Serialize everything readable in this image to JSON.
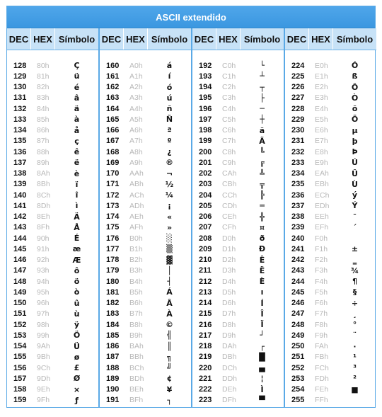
{
  "title": "ASCII extendido",
  "headers": {
    "dec": "DEC",
    "hex": "HEX",
    "sym": "Símbolo"
  },
  "columns": [
    [
      {
        "dec": "128",
        "hex": "80h",
        "sym": "Ç"
      },
      {
        "dec": "129",
        "hex": "81h",
        "sym": "ü"
      },
      {
        "dec": "130",
        "hex": "82h",
        "sym": "é"
      },
      {
        "dec": "131",
        "hex": "83h",
        "sym": "â"
      },
      {
        "dec": "132",
        "hex": "84h",
        "sym": "ä"
      },
      {
        "dec": "133",
        "hex": "85h",
        "sym": "à"
      },
      {
        "dec": "134",
        "hex": "86h",
        "sym": "å"
      },
      {
        "dec": "135",
        "hex": "87h",
        "sym": "ç"
      },
      {
        "dec": "136",
        "hex": "88h",
        "sym": "ê"
      },
      {
        "dec": "137",
        "hex": "89h",
        "sym": "ë"
      },
      {
        "dec": "138",
        "hex": "8Ah",
        "sym": "è"
      },
      {
        "dec": "139",
        "hex": "8Bh",
        "sym": "ï"
      },
      {
        "dec": "140",
        "hex": "8Ch",
        "sym": "î"
      },
      {
        "dec": "141",
        "hex": "8Dh",
        "sym": "ì"
      },
      {
        "dec": "142",
        "hex": "8Eh",
        "sym": "Ä"
      },
      {
        "dec": "143",
        "hex": "8Fh",
        "sym": "Å"
      },
      {
        "dec": "144",
        "hex": "90h",
        "sym": "É"
      },
      {
        "dec": "145",
        "hex": "91h",
        "sym": "æ"
      },
      {
        "dec": "146",
        "hex": "92h",
        "sym": "Æ"
      },
      {
        "dec": "147",
        "hex": "93h",
        "sym": "ô"
      },
      {
        "dec": "148",
        "hex": "94h",
        "sym": "ö"
      },
      {
        "dec": "149",
        "hex": "95h",
        "sym": "ò"
      },
      {
        "dec": "150",
        "hex": "96h",
        "sym": "û"
      },
      {
        "dec": "151",
        "hex": "97h",
        "sym": "ù"
      },
      {
        "dec": "152",
        "hex": "98h",
        "sym": "ÿ"
      },
      {
        "dec": "153",
        "hex": "99h",
        "sym": "Ö"
      },
      {
        "dec": "154",
        "hex": "9Ah",
        "sym": "Ü"
      },
      {
        "dec": "155",
        "hex": "9Bh",
        "sym": "ø"
      },
      {
        "dec": "156",
        "hex": "9Ch",
        "sym": "£"
      },
      {
        "dec": "157",
        "hex": "9Dh",
        "sym": "Ø"
      },
      {
        "dec": "158",
        "hex": "9Eh",
        "sym": "×"
      },
      {
        "dec": "159",
        "hex": "9Fh",
        "sym": "ƒ"
      }
    ],
    [
      {
        "dec": "160",
        "hex": "A0h",
        "sym": "á"
      },
      {
        "dec": "161",
        "hex": "A1h",
        "sym": "í"
      },
      {
        "dec": "162",
        "hex": "A2h",
        "sym": "ó"
      },
      {
        "dec": "163",
        "hex": "A3h",
        "sym": "ú"
      },
      {
        "dec": "164",
        "hex": "A4h",
        "sym": "ñ"
      },
      {
        "dec": "165",
        "hex": "A5h",
        "sym": "Ñ"
      },
      {
        "dec": "166",
        "hex": "A6h",
        "sym": "ª"
      },
      {
        "dec": "167",
        "hex": "A7h",
        "sym": "º"
      },
      {
        "dec": "168",
        "hex": "A8h",
        "sym": "¿"
      },
      {
        "dec": "169",
        "hex": "A9h",
        "sym": "®"
      },
      {
        "dec": "170",
        "hex": "AAh",
        "sym": "¬"
      },
      {
        "dec": "171",
        "hex": "ABh",
        "sym": "½"
      },
      {
        "dec": "172",
        "hex": "ACh",
        "sym": "¼"
      },
      {
        "dec": "173",
        "hex": "ADh",
        "sym": "¡"
      },
      {
        "dec": "174",
        "hex": "AEh",
        "sym": "«"
      },
      {
        "dec": "175",
        "hex": "AFh",
        "sym": "»"
      },
      {
        "dec": "176",
        "hex": "B0h",
        "sym": "░"
      },
      {
        "dec": "177",
        "hex": "B1h",
        "sym": "▒"
      },
      {
        "dec": "178",
        "hex": "B2h",
        "sym": "▓"
      },
      {
        "dec": "179",
        "hex": "B3h",
        "sym": "│"
      },
      {
        "dec": "180",
        "hex": "B4h",
        "sym": "┤"
      },
      {
        "dec": "181",
        "hex": "B5h",
        "sym": "Á"
      },
      {
        "dec": "182",
        "hex": "B6h",
        "sym": "Â"
      },
      {
        "dec": "183",
        "hex": "B7h",
        "sym": "À"
      },
      {
        "dec": "184",
        "hex": "B8h",
        "sym": "©"
      },
      {
        "dec": "185",
        "hex": "B9h",
        "sym": "╣"
      },
      {
        "dec": "186",
        "hex": "BAh",
        "sym": "║"
      },
      {
        "dec": "187",
        "hex": "BBh",
        "sym": "╗"
      },
      {
        "dec": "188",
        "hex": "BCh",
        "sym": "╝"
      },
      {
        "dec": "189",
        "hex": "BDh",
        "sym": "¢"
      },
      {
        "dec": "190",
        "hex": "BEh",
        "sym": "¥"
      },
      {
        "dec": "191",
        "hex": "BFh",
        "sym": "┐"
      }
    ],
    [
      {
        "dec": "192",
        "hex": "C0h",
        "sym": "└"
      },
      {
        "dec": "193",
        "hex": "C1h",
        "sym": "┴"
      },
      {
        "dec": "194",
        "hex": "C2h",
        "sym": "┬"
      },
      {
        "dec": "195",
        "hex": "C3h",
        "sym": "├"
      },
      {
        "dec": "196",
        "hex": "C4h",
        "sym": "─"
      },
      {
        "dec": "197",
        "hex": "C5h",
        "sym": "┼"
      },
      {
        "dec": "198",
        "hex": "C6h",
        "sym": "ã"
      },
      {
        "dec": "199",
        "hex": "C7h",
        "sym": "Ã"
      },
      {
        "dec": "200",
        "hex": "C8h",
        "sym": "╚"
      },
      {
        "dec": "201",
        "hex": "C9h",
        "sym": "╔"
      },
      {
        "dec": "202",
        "hex": "CAh",
        "sym": "╩"
      },
      {
        "dec": "203",
        "hex": "CBh",
        "sym": "╦"
      },
      {
        "dec": "204",
        "hex": "CCh",
        "sym": "╠"
      },
      {
        "dec": "205",
        "hex": "CDh",
        "sym": "═"
      },
      {
        "dec": "206",
        "hex": "CEh",
        "sym": "╬"
      },
      {
        "dec": "207",
        "hex": "CFh",
        "sym": "¤"
      },
      {
        "dec": "208",
        "hex": "D0h",
        "sym": "ð"
      },
      {
        "dec": "209",
        "hex": "D1h",
        "sym": "Ð"
      },
      {
        "dec": "210",
        "hex": "D2h",
        "sym": "Ê"
      },
      {
        "dec": "211",
        "hex": "D3h",
        "sym": "Ë"
      },
      {
        "dec": "212",
        "hex": "D4h",
        "sym": "È"
      },
      {
        "dec": "213",
        "hex": "D5h",
        "sym": "ı"
      },
      {
        "dec": "214",
        "hex": "D6h",
        "sym": "Í"
      },
      {
        "dec": "215",
        "hex": "D7h",
        "sym": "Î"
      },
      {
        "dec": "216",
        "hex": "D8h",
        "sym": "Ï"
      },
      {
        "dec": "217",
        "hex": "D9h",
        "sym": "┘"
      },
      {
        "dec": "218",
        "hex": "DAh",
        "sym": "┌"
      },
      {
        "dec": "219",
        "hex": "DBh",
        "sym": "█"
      },
      {
        "dec": "220",
        "hex": "DCh",
        "sym": "▄"
      },
      {
        "dec": "221",
        "hex": "DDh",
        "sym": "¦"
      },
      {
        "dec": "222",
        "hex": "DEh",
        "sym": "Ì"
      },
      {
        "dec": "223",
        "hex": "DFh",
        "sym": "▀"
      }
    ],
    [
      {
        "dec": "224",
        "hex": "E0h",
        "sym": "Ó"
      },
      {
        "dec": "225",
        "hex": "E1h",
        "sym": "ß"
      },
      {
        "dec": "226",
        "hex": "E2h",
        "sym": "Ô"
      },
      {
        "dec": "227",
        "hex": "E3h",
        "sym": "Ò"
      },
      {
        "dec": "228",
        "hex": "E4h",
        "sym": "õ"
      },
      {
        "dec": "229",
        "hex": "E5h",
        "sym": "Õ"
      },
      {
        "dec": "230",
        "hex": "E6h",
        "sym": "µ"
      },
      {
        "dec": "231",
        "hex": "E7h",
        "sym": "þ"
      },
      {
        "dec": "232",
        "hex": "E8h",
        "sym": "Þ"
      },
      {
        "dec": "233",
        "hex": "E9h",
        "sym": "Ú"
      },
      {
        "dec": "234",
        "hex": "EAh",
        "sym": "Û"
      },
      {
        "dec": "235",
        "hex": "EBh",
        "sym": "Ù"
      },
      {
        "dec": "236",
        "hex": "ECh",
        "sym": "ý"
      },
      {
        "dec": "237",
        "hex": "EDh",
        "sym": "Ý"
      },
      {
        "dec": "238",
        "hex": "EEh",
        "sym": "¯"
      },
      {
        "dec": "239",
        "hex": "EFh",
        "sym": "´"
      },
      {
        "dec": "240",
        "hex": "F0h",
        "sym": "­"
      },
      {
        "dec": "241",
        "hex": "F1h",
        "sym": "±"
      },
      {
        "dec": "242",
        "hex": "F2h",
        "sym": "‗"
      },
      {
        "dec": "243",
        "hex": "F3h",
        "sym": "¾"
      },
      {
        "dec": "244",
        "hex": "F4h",
        "sym": "¶"
      },
      {
        "dec": "245",
        "hex": "F5h",
        "sym": "§"
      },
      {
        "dec": "246",
        "hex": "F6h",
        "sym": "÷"
      },
      {
        "dec": "247",
        "hex": "F7h",
        "sym": "¸"
      },
      {
        "dec": "248",
        "hex": "F8h",
        "sym": "°"
      },
      {
        "dec": "249",
        "hex": "F9h",
        "sym": "¨"
      },
      {
        "dec": "250",
        "hex": "FAh",
        "sym": "·"
      },
      {
        "dec": "251",
        "hex": "FBh",
        "sym": "¹"
      },
      {
        "dec": "252",
        "hex": "FCh",
        "sym": "³"
      },
      {
        "dec": "253",
        "hex": "FDh",
        "sym": "²"
      },
      {
        "dec": "254",
        "hex": "FEh",
        "sym": "■"
      },
      {
        "dec": "255",
        "hex": "FFh",
        "sym": " "
      }
    ]
  ]
}
